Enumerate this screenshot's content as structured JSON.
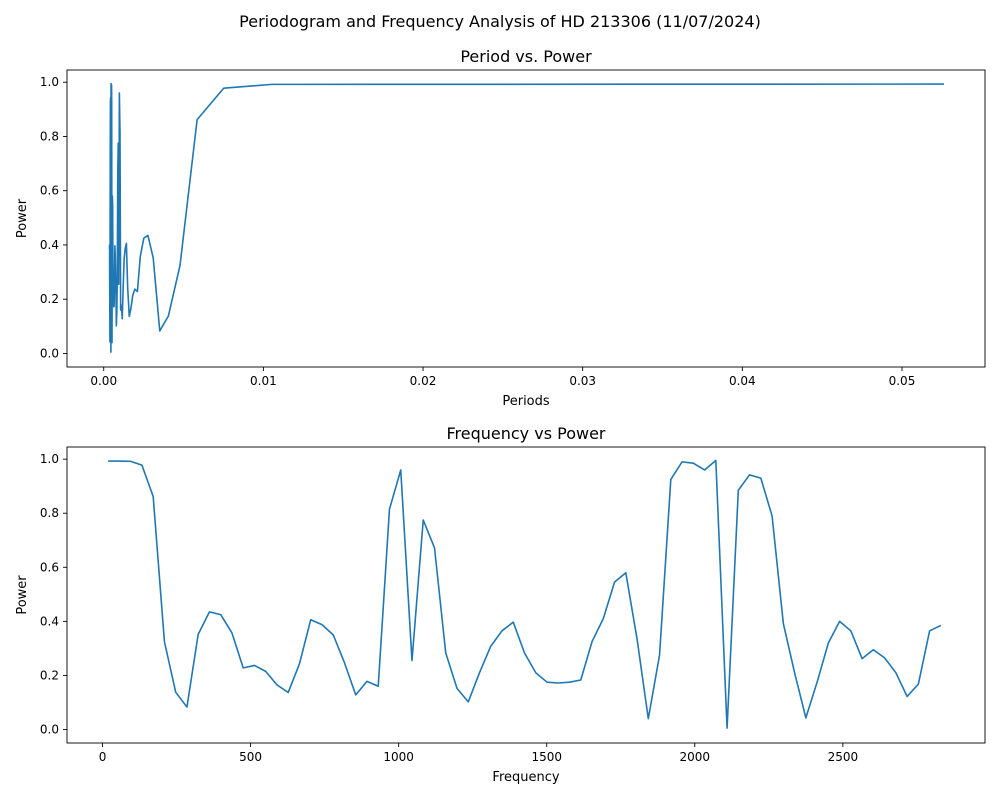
{
  "suptitle": "Periodogram and Frequency Analysis of HD 213306 (11/07/2024)",
  "chart_data": [
    {
      "type": "line",
      "title": "Period vs. Power",
      "xlabel": "Periods",
      "ylabel": "Power",
      "xlim": [
        -0.0023,
        0.0552
      ],
      "ylim": [
        -0.05,
        1.045
      ],
      "xticks": [
        0.0,
        0.01,
        0.02,
        0.03,
        0.04,
        0.05
      ],
      "xtick_labels": [
        "0.00",
        "0.01",
        "0.02",
        "0.03",
        "0.04",
        "0.05"
      ],
      "yticks": [
        0.0,
        0.2,
        0.4,
        0.6,
        0.8,
        1.0
      ],
      "ytick_labels": [
        "0.0",
        "0.2",
        "0.4",
        "0.6",
        "0.8",
        "1.0"
      ],
      "line_color": "#1f77b4",
      "grid": false,
      "series": [
        {
          "x": [
            0.05263,
            0.01053,
            0.00752,
            0.00585,
            0.00478,
            0.00405,
            0.00351,
            0.0031,
            0.00277,
            0.00251,
            0.00229,
            0.00211,
            0.00195,
            0.00182,
            0.0017,
            0.0016,
            0.0015,
            0.00142,
            0.00135,
            0.00128,
            0.00122,
            0.00116,
            0.00111,
            0.00106,
            0.00102,
            0.00098,
            0.00094,
            0.00091,
            0.00088,
            0.00085,
            0.00082,
            0.00079,
            0.00077,
            0.00074,
            0.00072,
            0.0007,
            0.00068,
            0.00066,
            0.00065,
            0.00063,
            0.00061,
            0.0006,
            0.00058,
            0.00057,
            0.00056,
            0.00054,
            0.00053,
            0.00052,
            0.00051,
            0.0005,
            0.00049,
            0.00048,
            0.00047,
            0.00046,
            0.00045,
            0.00044,
            0.00043,
            0.00042,
            0.00041,
            0.0004,
            0.00039,
            0.00039,
            0.00038,
            0.00037,
            0.00037,
            0.00036
          ],
          "y": [
            0.993,
            0.992,
            0.978,
            0.862,
            0.325,
            0.138,
            0.083,
            0.352,
            0.435,
            0.425,
            0.357,
            0.228,
            0.237,
            0.215,
            0.165,
            0.137,
            0.243,
            0.406,
            0.388,
            0.35,
            0.247,
            0.128,
            0.178,
            0.16,
            0.815,
            0.96,
            0.255,
            0.775,
            0.672,
            0.283,
            0.152,
            0.102,
            0.21,
            0.308,
            0.365,
            0.397,
            0.283,
            0.21,
            0.175,
            0.172,
            0.175,
            0.183,
            0.325,
            0.41,
            0.545,
            0.58,
            0.335,
            0.04,
            0.275,
            0.925,
            0.99,
            0.985,
            0.96,
            0.995,
            0.005,
            0.885,
            0.942,
            0.93,
            0.79,
            0.392,
            0.21,
            0.043,
            0.175,
            0.32,
            0.4,
            0.385
          ]
        }
      ]
    },
    {
      "type": "line",
      "title": "Frequency vs Power",
      "xlabel": "Frequency",
      "ylabel": "Power",
      "xlim": [
        -120,
        2980
      ],
      "ylim": [
        -0.05,
        1.045
      ],
      "xticks": [
        0,
        500,
        1000,
        1500,
        2000,
        2500
      ],
      "xtick_labels": [
        "0",
        "500",
        "1000",
        "1500",
        "2000",
        "2500"
      ],
      "yticks": [
        0.0,
        0.2,
        0.4,
        0.6,
        0.8,
        1.0
      ],
      "ytick_labels": [
        "0.0",
        "0.2",
        "0.4",
        "0.6",
        "0.8",
        "1.0"
      ],
      "line_color": "#1f77b4",
      "grid": false,
      "series": [
        {
          "x": [
            19,
            57,
            95,
            133,
            171,
            209,
            247,
            285,
            323,
            361,
            399,
            437,
            475,
            513,
            551,
            589,
            627,
            665,
            703,
            741,
            779,
            817,
            855,
            893,
            931,
            969,
            1007,
            1045,
            1083,
            1121,
            1159,
            1197,
            1235,
            1273,
            1311,
            1349,
            1387,
            1425,
            1463,
            1501,
            1539,
            1577,
            1615,
            1653,
            1691,
            1729,
            1767,
            1805,
            1843,
            1881,
            1919,
            1957,
            1995,
            2033,
            2071,
            2109,
            2147,
            2185,
            2223,
            2261,
            2299,
            2337,
            2375,
            2413,
            2451,
            2489,
            2527,
            2565,
            2603,
            2641,
            2679,
            2717,
            2755,
            2793,
            2831
          ],
          "y": [
            0.993,
            0.993,
            0.992,
            0.978,
            0.862,
            0.325,
            0.138,
            0.083,
            0.352,
            0.435,
            0.425,
            0.357,
            0.228,
            0.237,
            0.215,
            0.165,
            0.137,
            0.243,
            0.406,
            0.388,
            0.35,
            0.247,
            0.128,
            0.178,
            0.16,
            0.815,
            0.96,
            0.255,
            0.775,
            0.672,
            0.283,
            0.152,
            0.102,
            0.21,
            0.308,
            0.365,
            0.397,
            0.283,
            0.21,
            0.175,
            0.172,
            0.175,
            0.183,
            0.325,
            0.41,
            0.545,
            0.58,
            0.335,
            0.04,
            0.275,
            0.925,
            0.99,
            0.985,
            0.96,
            0.995,
            0.005,
            0.885,
            0.942,
            0.93,
            0.79,
            0.392,
            0.21,
            0.043,
            0.175,
            0.32,
            0.4,
            0.365,
            0.262,
            0.295,
            0.265,
            0.21,
            0.122,
            0.168,
            0.365,
            0.385
          ]
        }
      ]
    }
  ]
}
